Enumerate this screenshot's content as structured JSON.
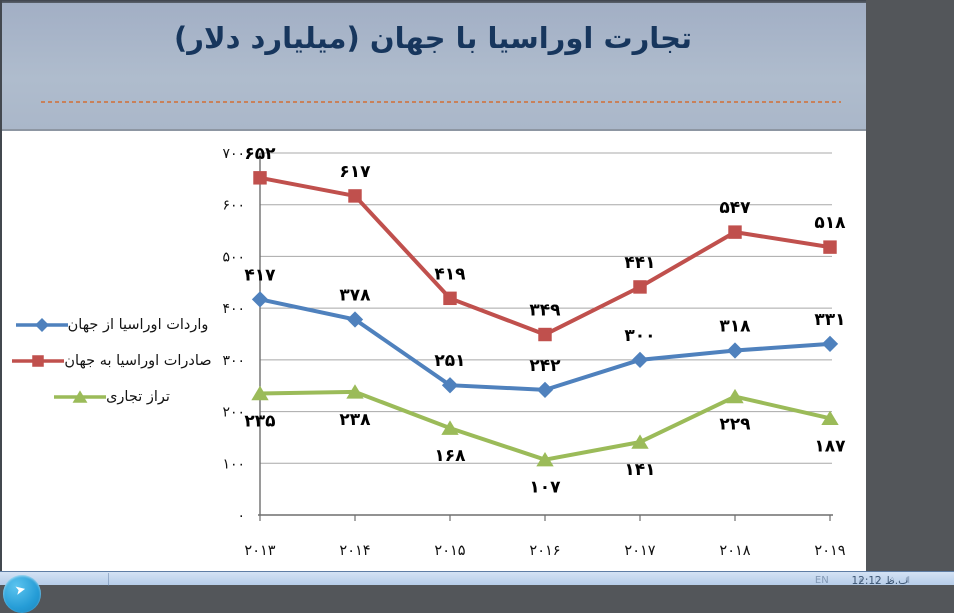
{
  "slide": {
    "title": "تجارت اوراسیا با جهان (میلیارد دلار)",
    "title_color": "#17365d",
    "separator_color": "#c9815a",
    "header_bg": "#aab7c9"
  },
  "chart_data": {
    "type": "line",
    "title": "تجارت اوراسیا با جهان (میلیارد دلار)",
    "unit": "میلیارد دلار",
    "categories": [
      "۲۰۱۳",
      "۲۰۱۴",
      "۲۰۱۵",
      "۲۰۱۶",
      "۲۰۱۷",
      "۲۰۱۸",
      "۲۰۱۹"
    ],
    "categories_values": [
      2013,
      2014,
      2015,
      2016,
      2017,
      2018,
      2019
    ],
    "y_axis": {
      "min": 0,
      "max": 700,
      "step": 100,
      "tick_labels": [
        "۰",
        "۱۰۰",
        "۲۰۰",
        "۳۰۰",
        "۴۰۰",
        "۵۰۰",
        "۶۰۰",
        "۷۰۰"
      ]
    },
    "grid": true,
    "legend_position": "left",
    "series": [
      {
        "name": "واردات اوراسیا از جهان",
        "color": "#4F81BD",
        "marker": "diamond",
        "label_position": "above",
        "values": [
          417,
          378,
          251,
          242,
          300,
          318,
          331
        ],
        "labels": [
          "۴۱۷",
          "۳۷۸",
          "۲۵۱",
          "۲۴۲",
          "۳۰۰",
          "۳۱۸",
          "۳۳۱"
        ]
      },
      {
        "name": "صادرات اوراسیا به جهان",
        "color": "#C0504D",
        "marker": "square",
        "label_position": "above",
        "values": [
          652,
          617,
          419,
          349,
          441,
          547,
          518
        ],
        "labels": [
          "۶۵۲",
          "۶۱۷",
          "۴۱۹",
          "۳۴۹",
          "۴۴۱",
          "۵۴۷",
          "۵۱۸"
        ]
      },
      {
        "name": "تراز تجاری",
        "color": "#9BBB59",
        "marker": "triangle",
        "label_position": "below",
        "values": [
          235,
          238,
          168,
          107,
          141,
          229,
          187
        ],
        "labels": [
          "۲۳۵",
          "۲۳۸",
          "۱۶۸",
          "۱۰۷",
          "۱۴۱",
          "۲۲۹",
          "۱۸۷"
        ]
      }
    ]
  },
  "taskbar": {
    "time": "12:12",
    "time_suffix": "ب.ظ",
    "language_indicator": "EN",
    "tray_icons": [
      {
        "name": "hidden-icons-chevron-icon",
        "glyph": "▴"
      },
      {
        "name": "power-icon",
        "glyph": "▯"
      },
      {
        "name": "network-icon",
        "glyph": "⬨"
      },
      {
        "name": "volume-icon",
        "glyph": "◖"
      }
    ]
  }
}
